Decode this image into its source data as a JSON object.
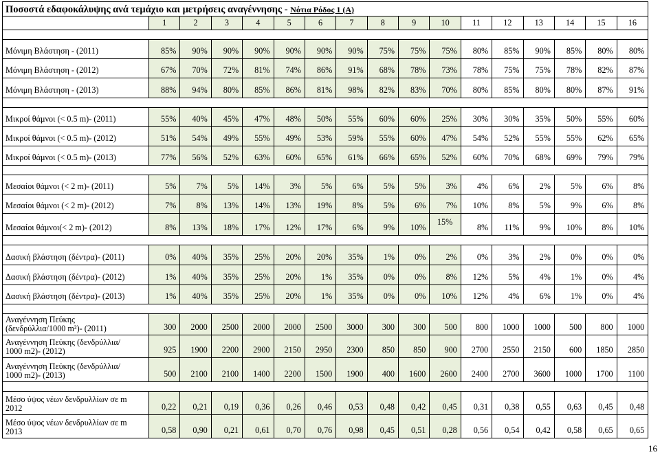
{
  "title": {
    "main": "Ποσοστά εδαφοκάλυψης ανά τεμάχιο και μετρήσεις αναγέννησης - ",
    "sub": "Νότια Ρόδος 1 (A)"
  },
  "columns": [
    "1",
    "2",
    "3",
    "4",
    "5",
    "6",
    "7",
    "8",
    "9",
    "10",
    "11",
    "12",
    "13",
    "14",
    "15",
    "16"
  ],
  "groups": [
    {
      "rows": [
        {
          "label": "Μόνιμη Βλάστηση - (2011)",
          "values": [
            "85%",
            "90%",
            "90%",
            "90%",
            "90%",
            "90%",
            "90%",
            "75%",
            "75%",
            "75%",
            "80%",
            "85%",
            "90%",
            "85%",
            "80%",
            "80%"
          ]
        },
        {
          "label": "Μόνιμη Βλάστηση - (2012)",
          "values": [
            "67%",
            "70%",
            "72%",
            "81%",
            "74%",
            "86%",
            "91%",
            "68%",
            "78%",
            "73%",
            "78%",
            "75%",
            "75%",
            "78%",
            "82%",
            "87%"
          ]
        },
        {
          "label": "Μόνιμη Βλάστηση - (2013)",
          "values": [
            "88%",
            "94%",
            "80%",
            "85%",
            "86%",
            "81%",
            "98%",
            "82%",
            "83%",
            "70%",
            "80%",
            "85%",
            "80%",
            "80%",
            "87%",
            "91%"
          ]
        }
      ]
    },
    {
      "rows": [
        {
          "label": "Μικροί θάμνοι (< 0.5 m)- (2011)",
          "values": [
            "55%",
            "40%",
            "45%",
            "47%",
            "48%",
            "50%",
            "55%",
            "60%",
            "60%",
            "25%",
            "30%",
            "30%",
            "35%",
            "50%",
            "55%",
            "60%"
          ]
        },
        {
          "label": "Μικροί θάμνοι (< 0.5 m)- (2012)",
          "values": [
            "51%",
            "54%",
            "49%",
            "55%",
            "49%",
            "53%",
            "59%",
            "55%",
            "60%",
            "47%",
            "54%",
            "52%",
            "55%",
            "55%",
            "62%",
            "65%"
          ]
        },
        {
          "label": "Μικροί θάμνοι (< 0.5 m)- (2013)",
          "values": [
            "77%",
            "56%",
            "52%",
            "63%",
            "60%",
            "65%",
            "61%",
            "66%",
            "65%",
            "52%",
            "60%",
            "70%",
            "68%",
            "69%",
            "79%",
            "79%"
          ]
        }
      ]
    },
    {
      "rows": [
        {
          "label": "Μεσαίοι θάμνοι (< 2 m)- (2011)",
          "values": [
            "5%",
            "7%",
            "5%",
            "14%",
            "3%",
            "5%",
            "6%",
            "5%",
            "5%",
            "3%",
            "4%",
            "6%",
            "2%",
            "5%",
            "6%",
            "8%"
          ]
        },
        {
          "label": "Μεσαίοι θάμνοι (< 2 m)- (2012)",
          "values": [
            "7%",
            "8%",
            "13%",
            "14%",
            "13%",
            "19%",
            "8%",
            "5%",
            "6%",
            "7%",
            "10%",
            "8%",
            "5%",
            "9%",
            "6%",
            "8%"
          ]
        },
        {
          "label": "Μεσαίοι θάμνοι(< 2 m)- (2012)",
          "values": [
            "8%",
            "13%",
            "18%",
            "17%",
            "12%",
            "17%",
            "6%",
            "9%",
            "10%",
            "15%",
            "8%",
            "11%",
            "9%",
            "10%",
            "8%",
            "10%"
          ]
        }
      ]
    },
    {
      "rows": [
        {
          "label": "Δασική βλάστηση (δέντρα)- (2011)",
          "values": [
            "0%",
            "40%",
            "35%",
            "25%",
            "20%",
            "20%",
            "35%",
            "1%",
            "0%",
            "2%",
            "0%",
            "3%",
            "2%",
            "0%",
            "0%",
            "0%"
          ]
        },
        {
          "label": "Δασική βλάστηση (δέντρα)- (2012)",
          "values": [
            "1%",
            "40%",
            "35%",
            "25%",
            "20%",
            "1%",
            "35%",
            "0%",
            "0%",
            "8%",
            "12%",
            "5%",
            "4%",
            "1%",
            "0%",
            "4%"
          ]
        },
        {
          "label": "Δασική βλάστηση (δέντρα)- (2013)",
          "values": [
            "1%",
            "40%",
            "35%",
            "25%",
            "20%",
            "1%",
            "35%",
            "0%",
            "0%",
            "10%",
            "12%",
            "4%",
            "6%",
            "1%",
            "0%",
            "4%"
          ]
        }
      ]
    },
    {
      "rows": [
        {
          "label_lines": [
            "Αναγέννηση Πεύκης",
            "(δενδρύλλια/1000 m²)- (2011)"
          ],
          "values": [
            "300",
            "2000",
            "2500",
            "2000",
            "2000",
            "2500",
            "3000",
            "300",
            "300",
            "500",
            "800",
            "1000",
            "1000",
            "500",
            "800",
            "1000"
          ]
        },
        {
          "label_lines": [
            "Αναγέννηση Πεύκης (δενδρύλλια/",
            "1000 m2)- (2012)"
          ],
          "values": [
            "925",
            "1900",
            "2200",
            "2900",
            "2150",
            "2950",
            "2300",
            "850",
            "850",
            "900",
            "2700",
            "2550",
            "2150",
            "600",
            "1850",
            "2850"
          ]
        },
        {
          "label_lines": [
            "Αναγέννηση Πεύκης (δενδρύλλια/",
            "1000 m2)- (2013)"
          ],
          "values": [
            "500",
            "2100",
            "2100",
            "1400",
            "2200",
            "1500",
            "1900",
            "400",
            "1600",
            "2600",
            "2400",
            "2700",
            "3600",
            "1000",
            "1700",
            "1100"
          ]
        }
      ]
    },
    {
      "rows": [
        {
          "label_lines": [
            "Μέσο ύψος νέων δενδρυλλίων σε m",
            "2012"
          ],
          "values": [
            "0,22",
            "0,21",
            "0,19",
            "0,36",
            "0,26",
            "0,46",
            "0,53",
            "0,48",
            "0,42",
            "0,45",
            "0,31",
            "0,38",
            "0,55",
            "0,63",
            "0,45",
            "0,48"
          ]
        },
        {
          "label_lines": [
            "Μέσο ύψος νέων δενδρυλλίων σε m",
            "2013"
          ],
          "values": [
            "0,58",
            "0,90",
            "0,21",
            "0,61",
            "0,70",
            "0,76",
            "0,98",
            "0,45",
            "0,51",
            "0,28",
            "0,56",
            "0,54",
            "0,42",
            "0,58",
            "0,65",
            "0,65"
          ]
        }
      ]
    }
  ],
  "page_number": "16"
}
